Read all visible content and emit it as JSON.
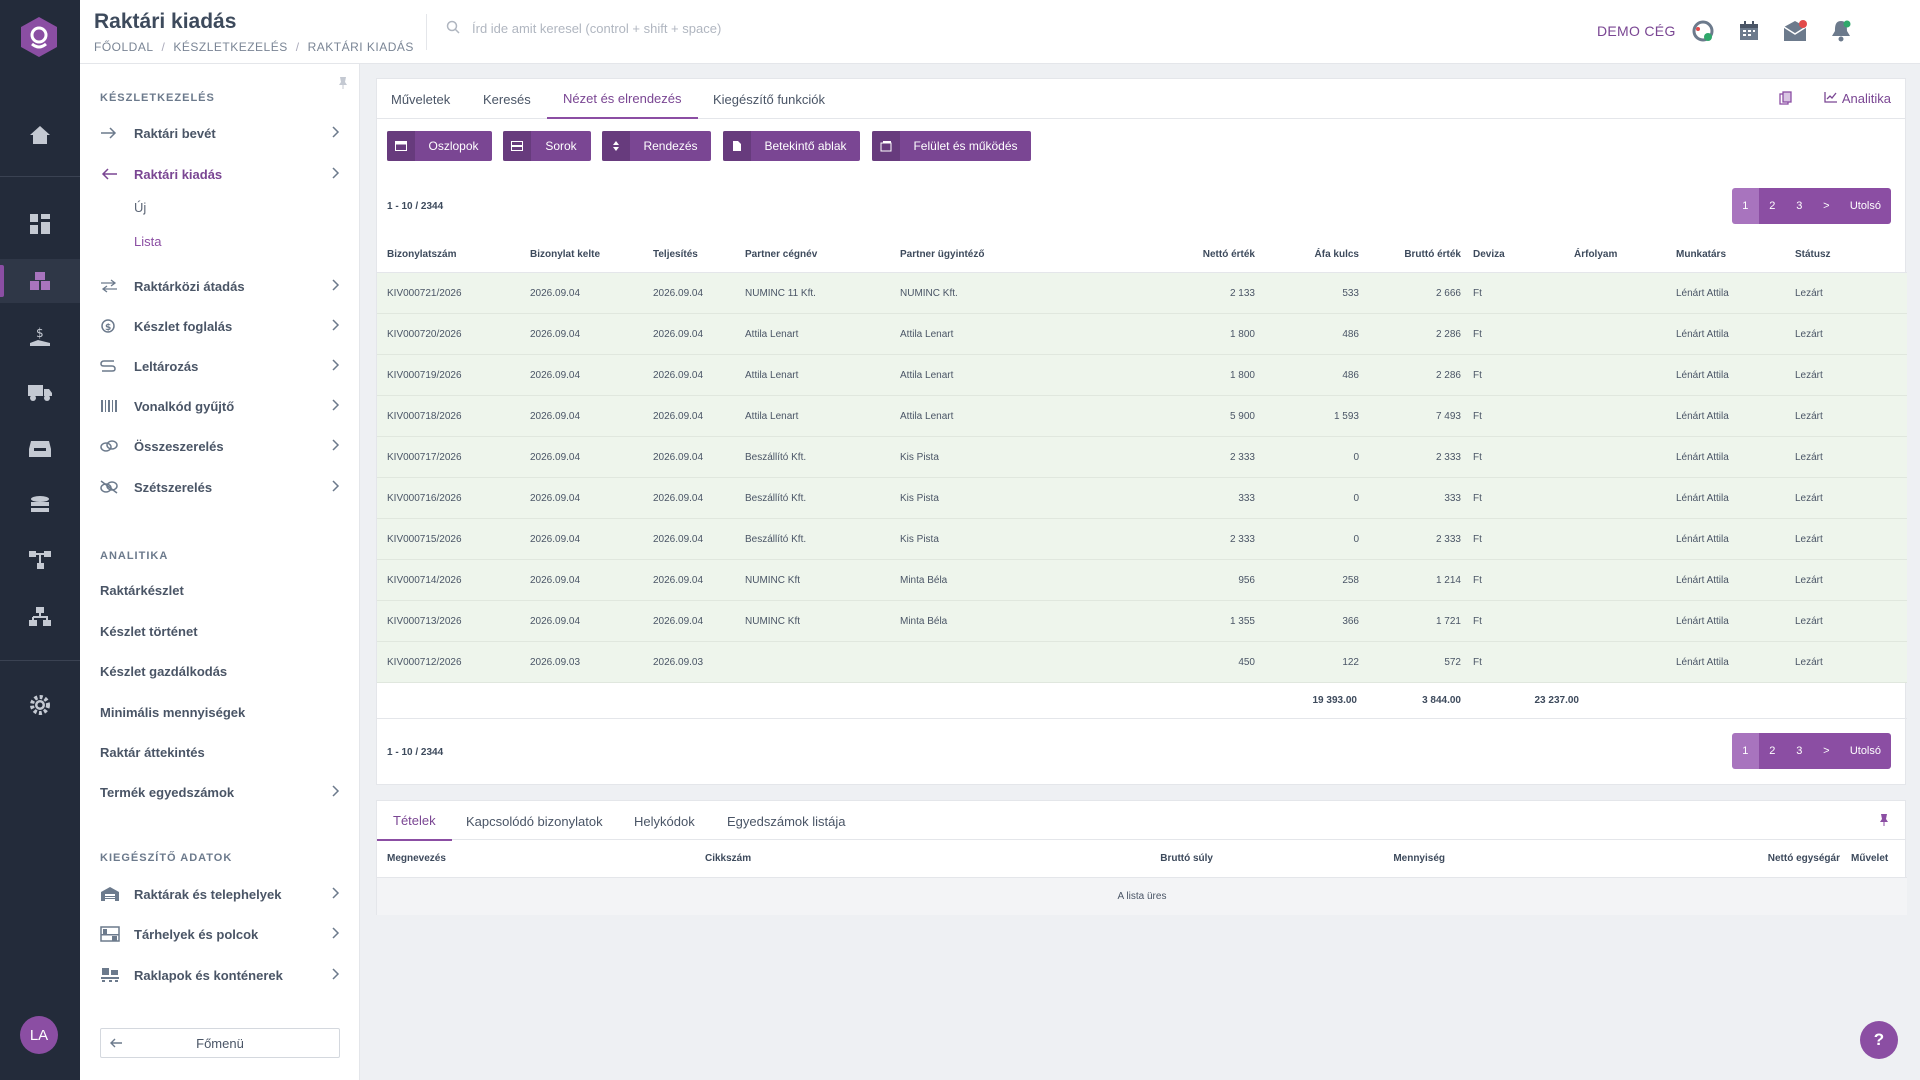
{
  "header": {
    "title": "Raktári kiadás",
    "breadcrumb": [
      "FŐOLDAL",
      "KÉSZLETKEZELÉS",
      "RAKTÁRI KIADÁS"
    ],
    "search_placeholder": "Írd ide amit keresel (control + shift + space)",
    "company": "DEMO CÉG",
    "user_initials": "LA"
  },
  "rail": {
    "user_initials": "LA"
  },
  "sidebar": {
    "section1": "KÉSZLETKEZELÉS",
    "items1": [
      {
        "label": "Raktári bevét"
      },
      {
        "label": "Raktári kiadás"
      },
      {
        "label": "Raktárközi átadás"
      },
      {
        "label": "Készlet foglalás"
      },
      {
        "label": "Leltározás"
      },
      {
        "label": "Vonalkód gyűjtő"
      },
      {
        "label": "Összeszerelés"
      },
      {
        "label": "Szétszerelés"
      }
    ],
    "subitems": [
      "Új",
      "Lista"
    ],
    "section2": "ANALITIKA",
    "items2": [
      "Raktárkészlet",
      "Készlet történet",
      "Készlet gazdálkodás",
      "Minimális mennyiségek",
      "Raktár áttekintés",
      "Termék egyedszámok"
    ],
    "section3": "KIEGÉSZÍTŐ ADATOK",
    "items3": [
      "Raktárak és telephelyek",
      "Tárhelyek és polcok",
      "Raklapok és konténerek"
    ],
    "main_menu": "Főmenü"
  },
  "main": {
    "tabs": [
      "Műveletek",
      "Keresés",
      "Nézet és elrendezés",
      "Kiegészítő funkciók"
    ],
    "analytics": "Analitika",
    "buttons": [
      "Oszlopok",
      "Sorok",
      "Rendezés",
      "Betekintő ablak",
      "Felület és működés"
    ],
    "count": "1 - 10 / 2344",
    "pager": [
      "1",
      "2",
      "3",
      ">",
      "Utolsó"
    ],
    "columns": [
      "Bizonylatszám",
      "Bizonylat kelte",
      "Teljesítés",
      "Partner cégnév",
      "Partner ügyintéző",
      "Nettó érték",
      "Áfa kulcs",
      "Bruttó érték",
      "Deviza",
      "Árfolyam",
      "Munkatárs",
      "Státusz"
    ],
    "rows": [
      [
        "KIV000721/2026",
        "2026.09.04",
        "2026.09.04",
        "NUMINC 11 Kft.",
        "NUMINC Kft.",
        "2 133",
        "533",
        "2 666",
        "Ft",
        "",
        "Lénárt Attila",
        "Lezárt"
      ],
      [
        "KIV000720/2026",
        "2026.09.04",
        "2026.09.04",
        "Attila Lenart",
        "Attila Lenart",
        "1 800",
        "486",
        "2 286",
        "Ft",
        "",
        "Lénárt Attila",
        "Lezárt"
      ],
      [
        "KIV000719/2026",
        "2026.09.04",
        "2026.09.04",
        "Attila Lenart",
        "Attila Lenart",
        "1 800",
        "486",
        "2 286",
        "Ft",
        "",
        "Lénárt Attila",
        "Lezárt"
      ],
      [
        "KIV000718/2026",
        "2026.09.04",
        "2026.09.04",
        "Attila Lenart",
        "Attila Lenart",
        "5 900",
        "1 593",
        "7 493",
        "Ft",
        "",
        "Lénárt Attila",
        "Lezárt"
      ],
      [
        "KIV000717/2026",
        "2026.09.04",
        "2026.09.04",
        "Beszállító Kft.",
        "Kis Pista",
        "2 333",
        "0",
        "2 333",
        "Ft",
        "",
        "Lénárt Attila",
        "Lezárt"
      ],
      [
        "KIV000716/2026",
        "2026.09.04",
        "2026.09.04",
        "Beszállító Kft.",
        "Kis Pista",
        "333",
        "0",
        "333",
        "Ft",
        "",
        "Lénárt Attila",
        "Lezárt"
      ],
      [
        "KIV000715/2026",
        "2026.09.04",
        "2026.09.04",
        "Beszállító Kft.",
        "Kis Pista",
        "2 333",
        "0",
        "2 333",
        "Ft",
        "",
        "Lénárt Attila",
        "Lezárt"
      ],
      [
        "KIV000714/2026",
        "2026.09.04",
        "2026.09.04",
        "NUMINC Kft",
        "Minta Béla",
        "956",
        "258",
        "1 214",
        "Ft",
        "",
        "Lénárt Attila",
        "Lezárt"
      ],
      [
        "KIV000713/2026",
        "2026.09.04",
        "2026.09.04",
        "NUMINC Kft",
        "Minta Béla",
        "1 355",
        "366",
        "1 721",
        "Ft",
        "",
        "Lénárt Attila",
        "Lezárt"
      ],
      [
        "KIV000712/2026",
        "2026.09.03",
        "2026.09.03",
        "",
        "",
        "450",
        "122",
        "572",
        "Ft",
        "",
        "Lénárt Attila",
        "Lezárt"
      ]
    ],
    "totals": {
      "net": "19 393.00",
      "vat": "3 844.00",
      "gross": "23 237.00"
    }
  },
  "details": {
    "tabs": [
      "Tételek",
      "Kapcsolódó bizonylatok",
      "Helykódok",
      "Egyedszámok listája"
    ],
    "columns": [
      "Megnevezés",
      "Cikkszám",
      "Bruttó súly",
      "Mennyiség",
      "Nettó egységár",
      "Művelet"
    ],
    "empty": "A lista üres"
  },
  "help": "?",
  "colors": {
    "accent": "#7a4693",
    "rail": "#232b3a",
    "row_bg": "#eef5ec"
  }
}
